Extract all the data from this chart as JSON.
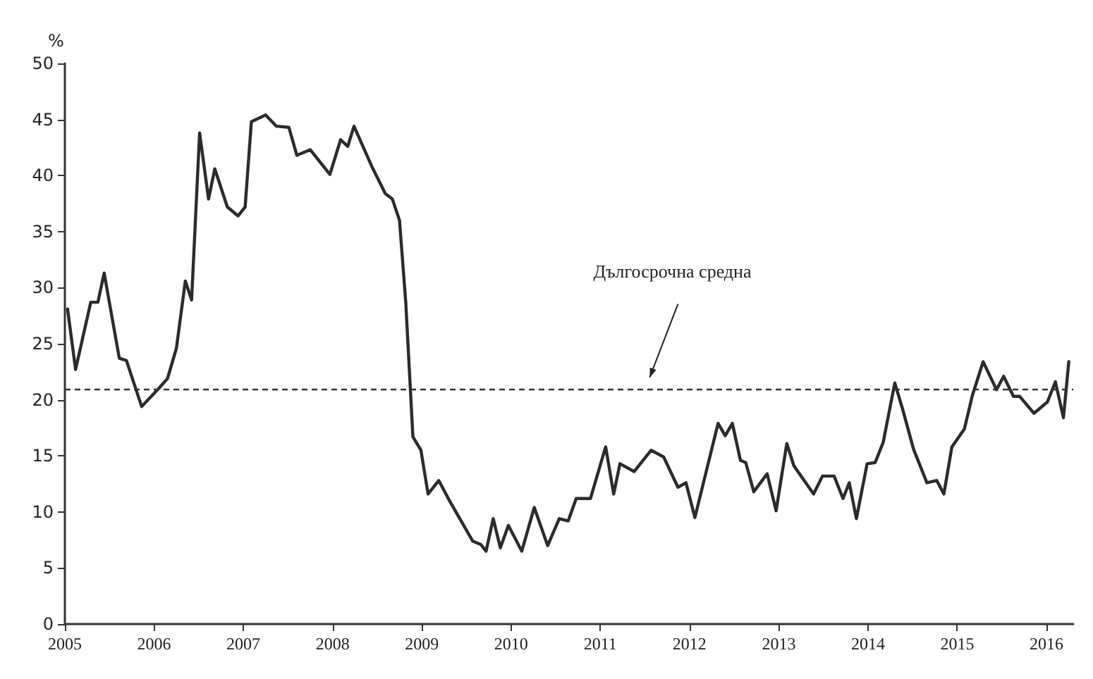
{
  "chart_data": {
    "type": "line",
    "ylabel": "%",
    "x": [
      2005.03,
      2005.12,
      2005.29,
      2005.37,
      2005.44,
      2005.61,
      2005.69,
      2005.86,
      2006.05,
      2006.15,
      2006.25,
      2006.35,
      2006.42,
      2006.51,
      2006.61,
      2006.68,
      2006.82,
      2006.94,
      2007.02,
      2007.09,
      2007.25,
      2007.37,
      2007.51,
      2007.6,
      2007.75,
      2007.97,
      2008.09,
      2008.17,
      2008.24,
      2008.44,
      2008.59,
      2008.67,
      2008.75,
      2008.82,
      2008.9,
      2008.99,
      2009.07,
      2009.19,
      2009.31,
      2009.57,
      2009.66,
      2009.72,
      2009.8,
      2009.88,
      2009.97,
      2010.12,
      2010.26,
      2010.41,
      2010.54,
      2010.64,
      2010.73,
      2010.89,
      2011.06,
      2011.15,
      2011.22,
      2011.38,
      2011.57,
      2011.71,
      2011.87,
      2011.96,
      2012.06,
      2012.32,
      2012.4,
      2012.48,
      2012.57,
      2012.63,
      2012.72,
      2012.87,
      2012.97,
      2013.09,
      2013.17,
      2013.39,
      2013.49,
      2013.62,
      2013.72,
      2013.79,
      2013.87,
      2013.99,
      2014.08,
      2014.17,
      2014.3,
      2014.39,
      2014.51,
      2014.66,
      2014.77,
      2014.85,
      2014.94,
      2015.08,
      2015.17,
      2015.29,
      2015.38,
      2015.44,
      2015.52,
      2015.63,
      2015.7,
      2015.86,
      2016.01,
      2016.1,
      2016.19,
      2016.25
    ],
    "series": [
      {
        "color": "#2b2b2b",
        "values": [
          28.1,
          22.7,
          28.7,
          28.7,
          31.3,
          23.7,
          23.5,
          19.4,
          21.0,
          21.9,
          24.6,
          30.6,
          28.9,
          43.8,
          37.9,
          40.6,
          37.2,
          36.4,
          37.2,
          44.8,
          45.4,
          44.4,
          44.3,
          41.8,
          42.3,
          40.1,
          43.2,
          42.6,
          44.4,
          40.8,
          38.4,
          37.9,
          36.0,
          28.7,
          16.7,
          15.5,
          11.6,
          12.8,
          11.0,
          7.4,
          7.1,
          6.5,
          9.4,
          6.8,
          8.8,
          6.5,
          10.4,
          7.0,
          9.4,
          9.2,
          11.2,
          11.2,
          15.8,
          11.6,
          14.3,
          13.6,
          15.5,
          14.9,
          12.2,
          12.6,
          9.5,
          17.9,
          16.8,
          17.9,
          14.6,
          14.4,
          11.8,
          13.4,
          10.1,
          16.1,
          14.1,
          11.6,
          13.2,
          13.2,
          11.2,
          12.6,
          9.4,
          14.3,
          14.4,
          16.2,
          21.5,
          19.1,
          15.6,
          12.6,
          12.8,
          11.6,
          15.8,
          17.4,
          20.4,
          23.4,
          21.9,
          20.9,
          22.1,
          20.3,
          20.3,
          18.8,
          19.8,
          21.6,
          18.4,
          23.4
        ]
      }
    ],
    "xlim": [
      2005,
      2016.3
    ],
    "xticks": [
      2005,
      2006,
      2007,
      2008,
      2009,
      2010,
      2011,
      2012,
      2013,
      2014,
      2015,
      2016
    ],
    "ylim": [
      0,
      50
    ],
    "yticks": [
      0,
      5,
      10,
      15,
      20,
      25,
      30,
      35,
      40,
      45,
      50
    ],
    "ref_lines": [
      {
        "axis": "y",
        "value": 21,
        "label": "Дългосрочна средна",
        "line_style": "dashed",
        "color": "#333333"
      }
    ],
    "grid": false,
    "marker": "none",
    "line_style": "solid"
  }
}
